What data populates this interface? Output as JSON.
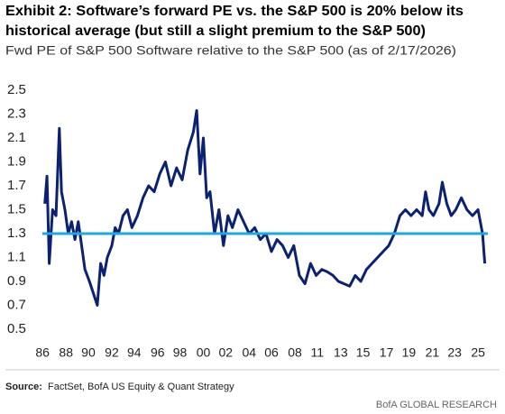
{
  "chart_data": {
    "type": "line",
    "title": [
      "Exhibit 2: Software’s forward PE vs. the S&P 500 is 20% below its",
      "historical average (but still a slight premium to the S&P 500)"
    ],
    "subtitle": "Fwd PE of S&P 500 Software relative to the S&P 500 (as of 2/17/2026)",
    "source_label": "Source:",
    "source": "FactSet, BofA US Equity & Quant Strategy",
    "footer": "BofA GLOBAL RESEARCH",
    "color": "#0c2270",
    "x": [
      1986.2,
      1986.4,
      1986.6,
      1986.9,
      1987.2,
      1987.5,
      1987.7,
      1988.0,
      1988.3,
      1988.6,
      1988.9,
      1989.2,
      1989.5,
      1989.8,
      1990.2,
      1990.9,
      1991.2,
      1991.5,
      1991.8,
      1992.2,
      1992.5,
      1992.8,
      1993.2,
      1993.6,
      1994.0,
      1994.5,
      1995.0,
      1995.5,
      1996.0,
      1996.5,
      1997.0,
      1997.5,
      1998.0,
      1998.5,
      1999.0,
      1999.5,
      1999.8,
      2000.1,
      2000.4,
      2000.7,
      2001.0,
      2001.4,
      2001.8,
      2002.2,
      2002.6,
      2003.0,
      2003.5,
      2004.0,
      2004.5,
      2005.0,
      2005.5,
      2006.0,
      2006.5,
      2007.0,
      2007.5,
      2008.0,
      2008.5,
      2009.0,
      2009.5,
      2010.0,
      2010.5,
      2011.0,
      2011.5,
      2012.0,
      2012.5,
      2013.0,
      2013.5,
      2014.0,
      2014.5,
      2015.0,
      2015.5,
      2016.0,
      2016.5,
      2017.0,
      2017.5,
      2018.0,
      2018.5,
      2019.0,
      2019.5,
      2020.0,
      2020.3,
      2020.6,
      2021.0,
      2021.5,
      2021.8,
      2022.2,
      2022.6,
      2023.0,
      2023.5,
      2024.0,
      2024.5,
      2025.0,
      2025.4,
      2025.6
    ],
    "values": [
      1.55,
      1.78,
      1.05,
      1.5,
      1.45,
      2.18,
      1.65,
      1.5,
      1.3,
      1.4,
      1.25,
      1.4,
      1.2,
      1.0,
      0.9,
      0.7,
      1.05,
      0.95,
      1.1,
      1.2,
      1.35,
      1.3,
      1.45,
      1.5,
      1.35,
      1.45,
      1.6,
      1.7,
      1.65,
      1.8,
      1.9,
      1.7,
      1.85,
      1.75,
      2.0,
      2.15,
      2.33,
      1.8,
      2.1,
      1.6,
      1.65,
      1.3,
      1.5,
      1.2,
      1.45,
      1.35,
      1.5,
      1.4,
      1.3,
      1.35,
      1.25,
      1.3,
      1.15,
      1.25,
      1.2,
      1.1,
      1.2,
      0.95,
      0.88,
      1.05,
      0.95,
      1.0,
      0.98,
      0.95,
      0.9,
      0.88,
      0.86,
      0.95,
      0.9,
      1.0,
      1.05,
      1.1,
      1.15,
      1.2,
      1.3,
      1.45,
      1.5,
      1.45,
      1.5,
      1.45,
      1.65,
      1.5,
      1.45,
      1.55,
      1.73,
      1.55,
      1.45,
      1.5,
      1.6,
      1.5,
      1.45,
      1.5,
      1.3,
      1.05
    ],
    "reference_lines": [
      {
        "value": 1.3,
        "color": "#1fa8dc"
      }
    ],
    "xlim": [
      1985.5,
      2026.2
    ],
    "ylim": [
      0.5,
      2.5
    ],
    "yticks": [
      0.5,
      0.7,
      0.9,
      1.1,
      1.3,
      1.5,
      1.7,
      1.9,
      2.1,
      2.3,
      2.5
    ],
    "xticks": [
      {
        "value": 1986,
        "label": "86"
      },
      {
        "value": 1988.1,
        "label": "88"
      },
      {
        "value": 1990.1,
        "label": "90"
      },
      {
        "value": 1992.2,
        "label": "92"
      },
      {
        "value": 1994.2,
        "label": "94"
      },
      {
        "value": 1996.3,
        "label": "96"
      },
      {
        "value": 1998.3,
        "label": "98"
      },
      {
        "value": 2000.4,
        "label": "00"
      },
      {
        "value": 2002.4,
        "label": "02"
      },
      {
        "value": 2004.5,
        "label": "04"
      },
      {
        "value": 2006.5,
        "label": "06"
      },
      {
        "value": 2008.6,
        "label": "08"
      },
      {
        "value": 2010.6,
        "label": "11"
      },
      {
        "value": 2012.7,
        "label": "13"
      },
      {
        "value": 2014.7,
        "label": "15"
      },
      {
        "value": 2016.8,
        "label": "17"
      },
      {
        "value": 2018.8,
        "label": "19"
      },
      {
        "value": 2020.9,
        "label": "21"
      },
      {
        "value": 2022.9,
        "label": "23"
      },
      {
        "value": 2025,
        "label": "25"
      }
    ],
    "grid": false
  }
}
